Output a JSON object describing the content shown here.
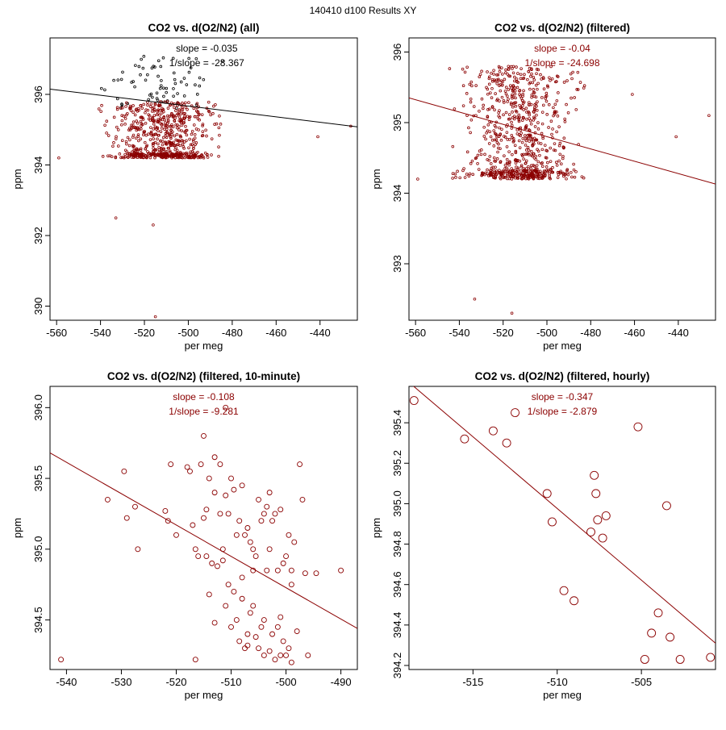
{
  "page_title": "140410   d100   Results XY",
  "colors": {
    "all_points": "#000000",
    "filtered": "#8b0000",
    "axis": "#000000"
  },
  "chart_data": [
    {
      "type": "scatter",
      "title": "CO2 vs. d(O2/N2) (all)",
      "xlabel": "per meg",
      "ylabel": "ppm",
      "xlim": [
        -563,
        -423
      ],
      "ylim": [
        389.6,
        397.6
      ],
      "xticks": [
        -560,
        -540,
        -520,
        -500,
        -480,
        -460,
        -440
      ],
      "yticks": [
        390,
        392,
        394,
        396
      ],
      "annotations": [
        "slope = -0.035",
        "1/slope = -28.367"
      ],
      "fit_line": {
        "x": [
          -563,
          -423
        ],
        "y": [
          396.15,
          395.08
        ]
      },
      "point_radius": 1.4,
      "series": [
        {
          "name": "unfiltered",
          "color": "#000000",
          "cloud": {
            "n": 70,
            "x_range": [
              -548,
              -480
            ],
            "y_range": [
              395.6,
              397.1
            ]
          }
        },
        {
          "name": "filtered",
          "color": "#8b0000",
          "cloud": {
            "n": 650,
            "x_range": [
              -545,
              -478
            ],
            "y_range": [
              394.2,
              395.8
            ]
          }
        }
      ],
      "outliers": {
        "x": [
          -559,
          -533,
          -516,
          -515,
          -441,
          -426
        ],
        "y": [
          394.2,
          392.5,
          392.3,
          389.7,
          394.8,
          395.1
        ]
      }
    },
    {
      "type": "scatter",
      "title": "CO2 vs. d(O2/N2) (filtered)",
      "xlabel": "per meg",
      "ylabel": "ppm",
      "xlim": [
        -563,
        -423
      ],
      "ylim": [
        392.2,
        396.2
      ],
      "xticks": [
        -560,
        -540,
        -520,
        -500,
        -480,
        -460,
        -440
      ],
      "yticks": [
        393,
        394,
        395,
        396
      ],
      "annotations": [
        "slope = -0.04",
        "1/slope = -24.698"
      ],
      "fit_line": {
        "x": [
          -563,
          -423
        ],
        "y": [
          395.35,
          394.13
        ]
      },
      "point_radius": 1.4,
      "series": [
        {
          "name": "filtered",
          "color": "#8b0000",
          "cloud": {
            "n": 750,
            "x_range": [
              -548,
              -478
            ],
            "y_range": [
              394.2,
              395.8
            ]
          }
        }
      ],
      "outliers": {
        "x": [
          -559,
          -533,
          -516,
          -441,
          -426,
          -461
        ],
        "y": [
          394.2,
          392.5,
          392.3,
          394.8,
          395.1,
          395.4
        ]
      }
    },
    {
      "type": "scatter",
      "title": "CO2 vs. d(O2/N2) (filtered, 10-minute)",
      "xlabel": "per meg",
      "ylabel": "ppm",
      "xlim": [
        -543,
        -487
      ],
      "ylim": [
        394.15,
        396.15
      ],
      "xticks": [
        -540,
        -530,
        -520,
        -510,
        -500,
        -490
      ],
      "yticks": [
        394.5,
        395.0,
        395.5,
        396.0
      ],
      "annotations": [
        "slope = -0.108",
        "1/slope = -9.281"
      ],
      "fit_line": {
        "x": [
          -543,
          -487
        ],
        "y": [
          395.68,
          394.44
        ]
      },
      "point_radius": 3,
      "series": [
        {
          "name": "10-minute",
          "color": "#8b0000",
          "x": [
            -541,
            -532.5,
            -529.5,
            -529,
            -527.5,
            -527,
            -522,
            -521.5,
            -521,
            -520,
            -518,
            -517.5,
            -517,
            -516.5,
            -516.5,
            -516,
            -515.5,
            -515,
            -514.5,
            -514.5,
            -514,
            -514,
            -513.5,
            -513,
            -513,
            -512.5,
            -512,
            -512,
            -511.5,
            -511.5,
            -511,
            -511,
            -510.5,
            -510.5,
            -510,
            -510,
            -509.5,
            -509.5,
            -509,
            -509,
            -508.5,
            -508.5,
            -508,
            -508,
            -507.5,
            -507.5,
            -507,
            -507,
            -506.5,
            -506.5,
            -506,
            -506,
            -505.5,
            -505.5,
            -505,
            -505,
            -504.5,
            -504.5,
            -504,
            -504,
            -503.5,
            -503.5,
            -503,
            -503,
            -502.5,
            -502.5,
            -502,
            -502,
            -501.5,
            -501.5,
            -501,
            -501,
            -500.5,
            -500.5,
            -500,
            -500,
            -499.5,
            -499.5,
            -499,
            -499,
            -498.5,
            -498,
            -497.5,
            -497,
            -496.5,
            -496,
            -494.5,
            -490,
            -511,
            -515,
            -508,
            -503,
            -506,
            -501,
            -513,
            -499,
            -504,
            -507
          ],
          "y": [
            394.22,
            395.35,
            395.55,
            395.22,
            395.3,
            395.0,
            395.27,
            395.2,
            395.6,
            395.1,
            395.58,
            395.55,
            395.17,
            395.0,
            394.22,
            394.95,
            395.6,
            395.22,
            395.28,
            394.95,
            394.68,
            395.5,
            394.9,
            395.65,
            395.4,
            394.88,
            395.6,
            395.25,
            394.92,
            395.0,
            395.38,
            394.6,
            395.25,
            394.75,
            395.5,
            394.45,
            395.42,
            394.7,
            395.1,
            394.5,
            395.2,
            394.35,
            395.45,
            394.65,
            395.1,
            394.3,
            395.15,
            394.4,
            395.05,
            394.55,
            395.0,
            394.85,
            394.95,
            394.38,
            395.35,
            394.3,
            395.2,
            394.45,
            395.25,
            394.25,
            395.3,
            394.85,
            395.0,
            394.28,
            395.2,
            394.4,
            395.25,
            394.22,
            394.85,
            394.45,
            395.28,
            394.25,
            394.9,
            394.35,
            394.95,
            394.25,
            395.1,
            394.3,
            394.85,
            394.2,
            395.05,
            394.42,
            395.6,
            395.35,
            394.83,
            394.25,
            394.83,
            394.85,
            396.0,
            395.8,
            394.8,
            395.4,
            394.6,
            394.52,
            394.48,
            394.75,
            394.5,
            394.32
          ]
        }
      ]
    },
    {
      "type": "scatter",
      "title": "CO2 vs. d(O2/N2) (filtered, hourly)",
      "xlabel": "per meg",
      "ylabel": "ppm",
      "xlim": [
        -518.8,
        -500.6
      ],
      "ylim": [
        394.18,
        395.58
      ],
      "xticks": [
        -515,
        -510,
        -505
      ],
      "yticks": [
        394.2,
        394.4,
        394.6,
        394.8,
        395.0,
        395.2,
        395.4
      ],
      "annotations": [
        "slope = -0.347",
        "1/slope = -2.879"
      ],
      "fit_line": {
        "x": [
          -518.8,
          -500.6
        ],
        "y": [
          395.6,
          394.31
        ]
      },
      "point_radius": 5,
      "series": [
        {
          "name": "hourly",
          "color": "#8b0000",
          "x": [
            -518.5,
            -515.5,
            -513.8,
            -513.0,
            -512.5,
            -510.6,
            -510.3,
            -509.6,
            -509.0,
            -508.0,
            -507.8,
            -507.7,
            -507.6,
            -507.3,
            -507.1,
            -505.2,
            -504.8,
            -504.4,
            -504.0,
            -503.5,
            -503.3,
            -502.7,
            -500.9
          ],
          "y": [
            395.51,
            395.32,
            395.36,
            395.3,
            395.45,
            395.05,
            394.91,
            394.57,
            394.52,
            394.86,
            395.14,
            395.05,
            394.92,
            394.83,
            394.94,
            395.38,
            394.23,
            394.36,
            394.46,
            394.99,
            394.34,
            394.23,
            394.24
          ]
        }
      ]
    }
  ]
}
